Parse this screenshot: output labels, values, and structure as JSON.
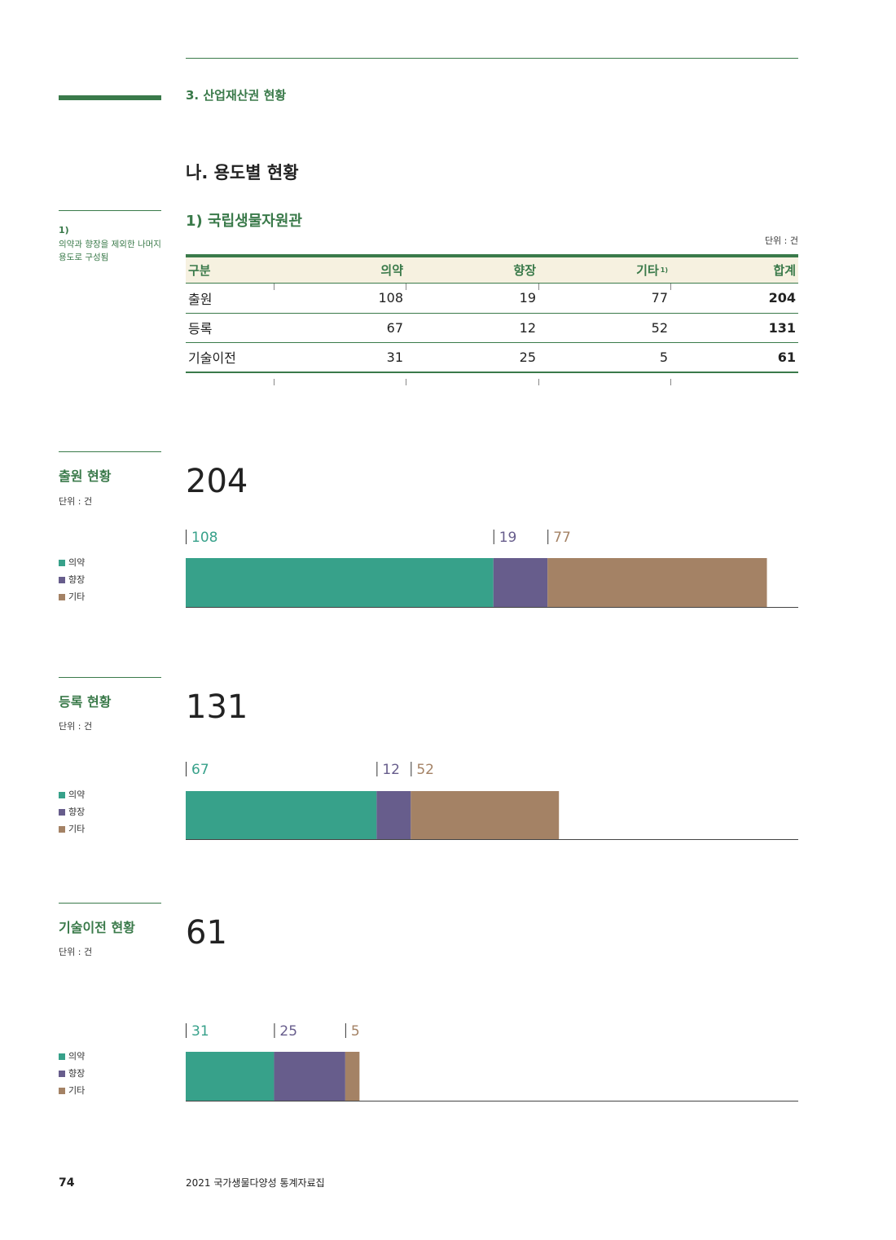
{
  "header": {
    "section": "3. 산업재산권 현황",
    "heading": "나. 용도별 현황",
    "subheading": "1) 국립생물자원관"
  },
  "footnote": {
    "number": "1)",
    "text": "의약과 향장을 제외한 나머지 용도로 구성됨"
  },
  "table": {
    "unit": "단위 : 건",
    "headers": [
      "구분",
      "의약",
      "향장",
      "기타",
      "합계"
    ],
    "header_sup": "1)",
    "rows": [
      [
        "출원",
        "108",
        "19",
        "77",
        "204"
      ],
      [
        "등록",
        "67",
        "12",
        "52",
        "131"
      ],
      [
        "기술이전",
        "31",
        "25",
        "5",
        "61"
      ]
    ]
  },
  "colors": {
    "medicine": "#37a18a",
    "cosmetic": "#675d8c",
    "other": "#a48265",
    "accent": "#3a7a4a"
  },
  "chart_data": [
    {
      "type": "bar",
      "title": "출원 현황",
      "unit": "단위 : 건",
      "total": "204",
      "series": [
        {
          "name": "의약",
          "values": [
            108
          ]
        },
        {
          "name": "향장",
          "values": [
            19
          ]
        },
        {
          "name": "기타",
          "values": [
            77
          ]
        }
      ],
      "xlim": [
        0,
        215
      ]
    },
    {
      "type": "bar",
      "title": "등록 현황",
      "unit": "단위 : 건",
      "total": "131",
      "series": [
        {
          "name": "의약",
          "values": [
            67
          ]
        },
        {
          "name": "향장",
          "values": [
            12
          ]
        },
        {
          "name": "기타",
          "values": [
            52
          ]
        }
      ],
      "xlim": [
        0,
        215
      ]
    },
    {
      "type": "bar",
      "title": "기술이전 현황",
      "unit": "단위 : 건",
      "total": "61",
      "series": [
        {
          "name": "의약",
          "values": [
            31
          ]
        },
        {
          "name": "향장",
          "values": [
            25
          ]
        },
        {
          "name": "기타",
          "values": [
            5
          ]
        }
      ],
      "xlim": [
        0,
        215
      ]
    }
  ],
  "footer": {
    "page": "74",
    "title": "2021 국가생물다양성 통계자료집"
  }
}
